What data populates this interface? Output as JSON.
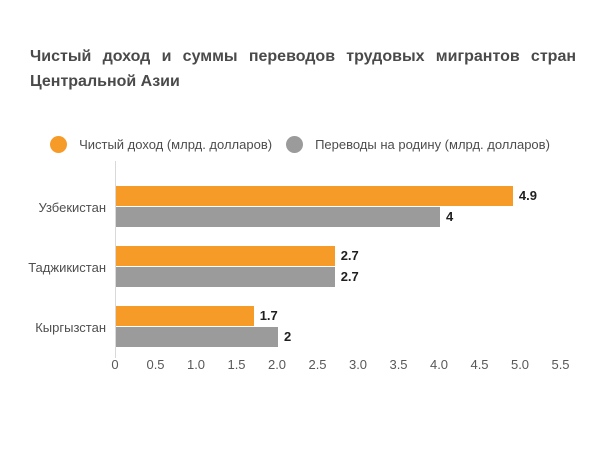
{
  "chart_data": {
    "type": "bar",
    "orientation": "horizontal",
    "title": "Чистый доход и суммы переводов трудовых мигрантов стран Центральной Азии",
    "title_lines": [
      "Чистый доход и суммы переводов трудовых мигрантов стран",
      "Центральной Азии"
    ],
    "categories": [
      "Узбекистан",
      "Таджикистан",
      "Кыргызстан"
    ],
    "series": [
      {
        "name": "Чистый доход (млрд. долларов)",
        "color": "#f79b28",
        "values": [
          4.9,
          2.7,
          1.7
        ],
        "value_labels": [
          "4.9",
          "2.7",
          "1.7"
        ]
      },
      {
        "name": "Переводы на родину (млрд. долларов)",
        "color": "#9b9b9b",
        "values": [
          4,
          2.7,
          2
        ],
        "value_labels": [
          "4",
          "2.7",
          "2"
        ]
      }
    ],
    "x_axis": {
      "min": 0,
      "max": 5.5,
      "tick_step": 0.5,
      "tick_labels": [
        "0",
        "0.5",
        "1.0",
        "1.5",
        "2.0",
        "2.5",
        "3.0",
        "3.5",
        "4.0",
        "4.5",
        "5.0",
        "5.5"
      ]
    },
    "legend_position": "top",
    "grid": false,
    "colors": {
      "background": "#ffffff",
      "title_text": "#4a4a4a",
      "axis_line": "#d9d9d9",
      "tick_text": "#585858",
      "category_text": "#4f4f4f",
      "value_text": "#1f1f1f"
    }
  }
}
